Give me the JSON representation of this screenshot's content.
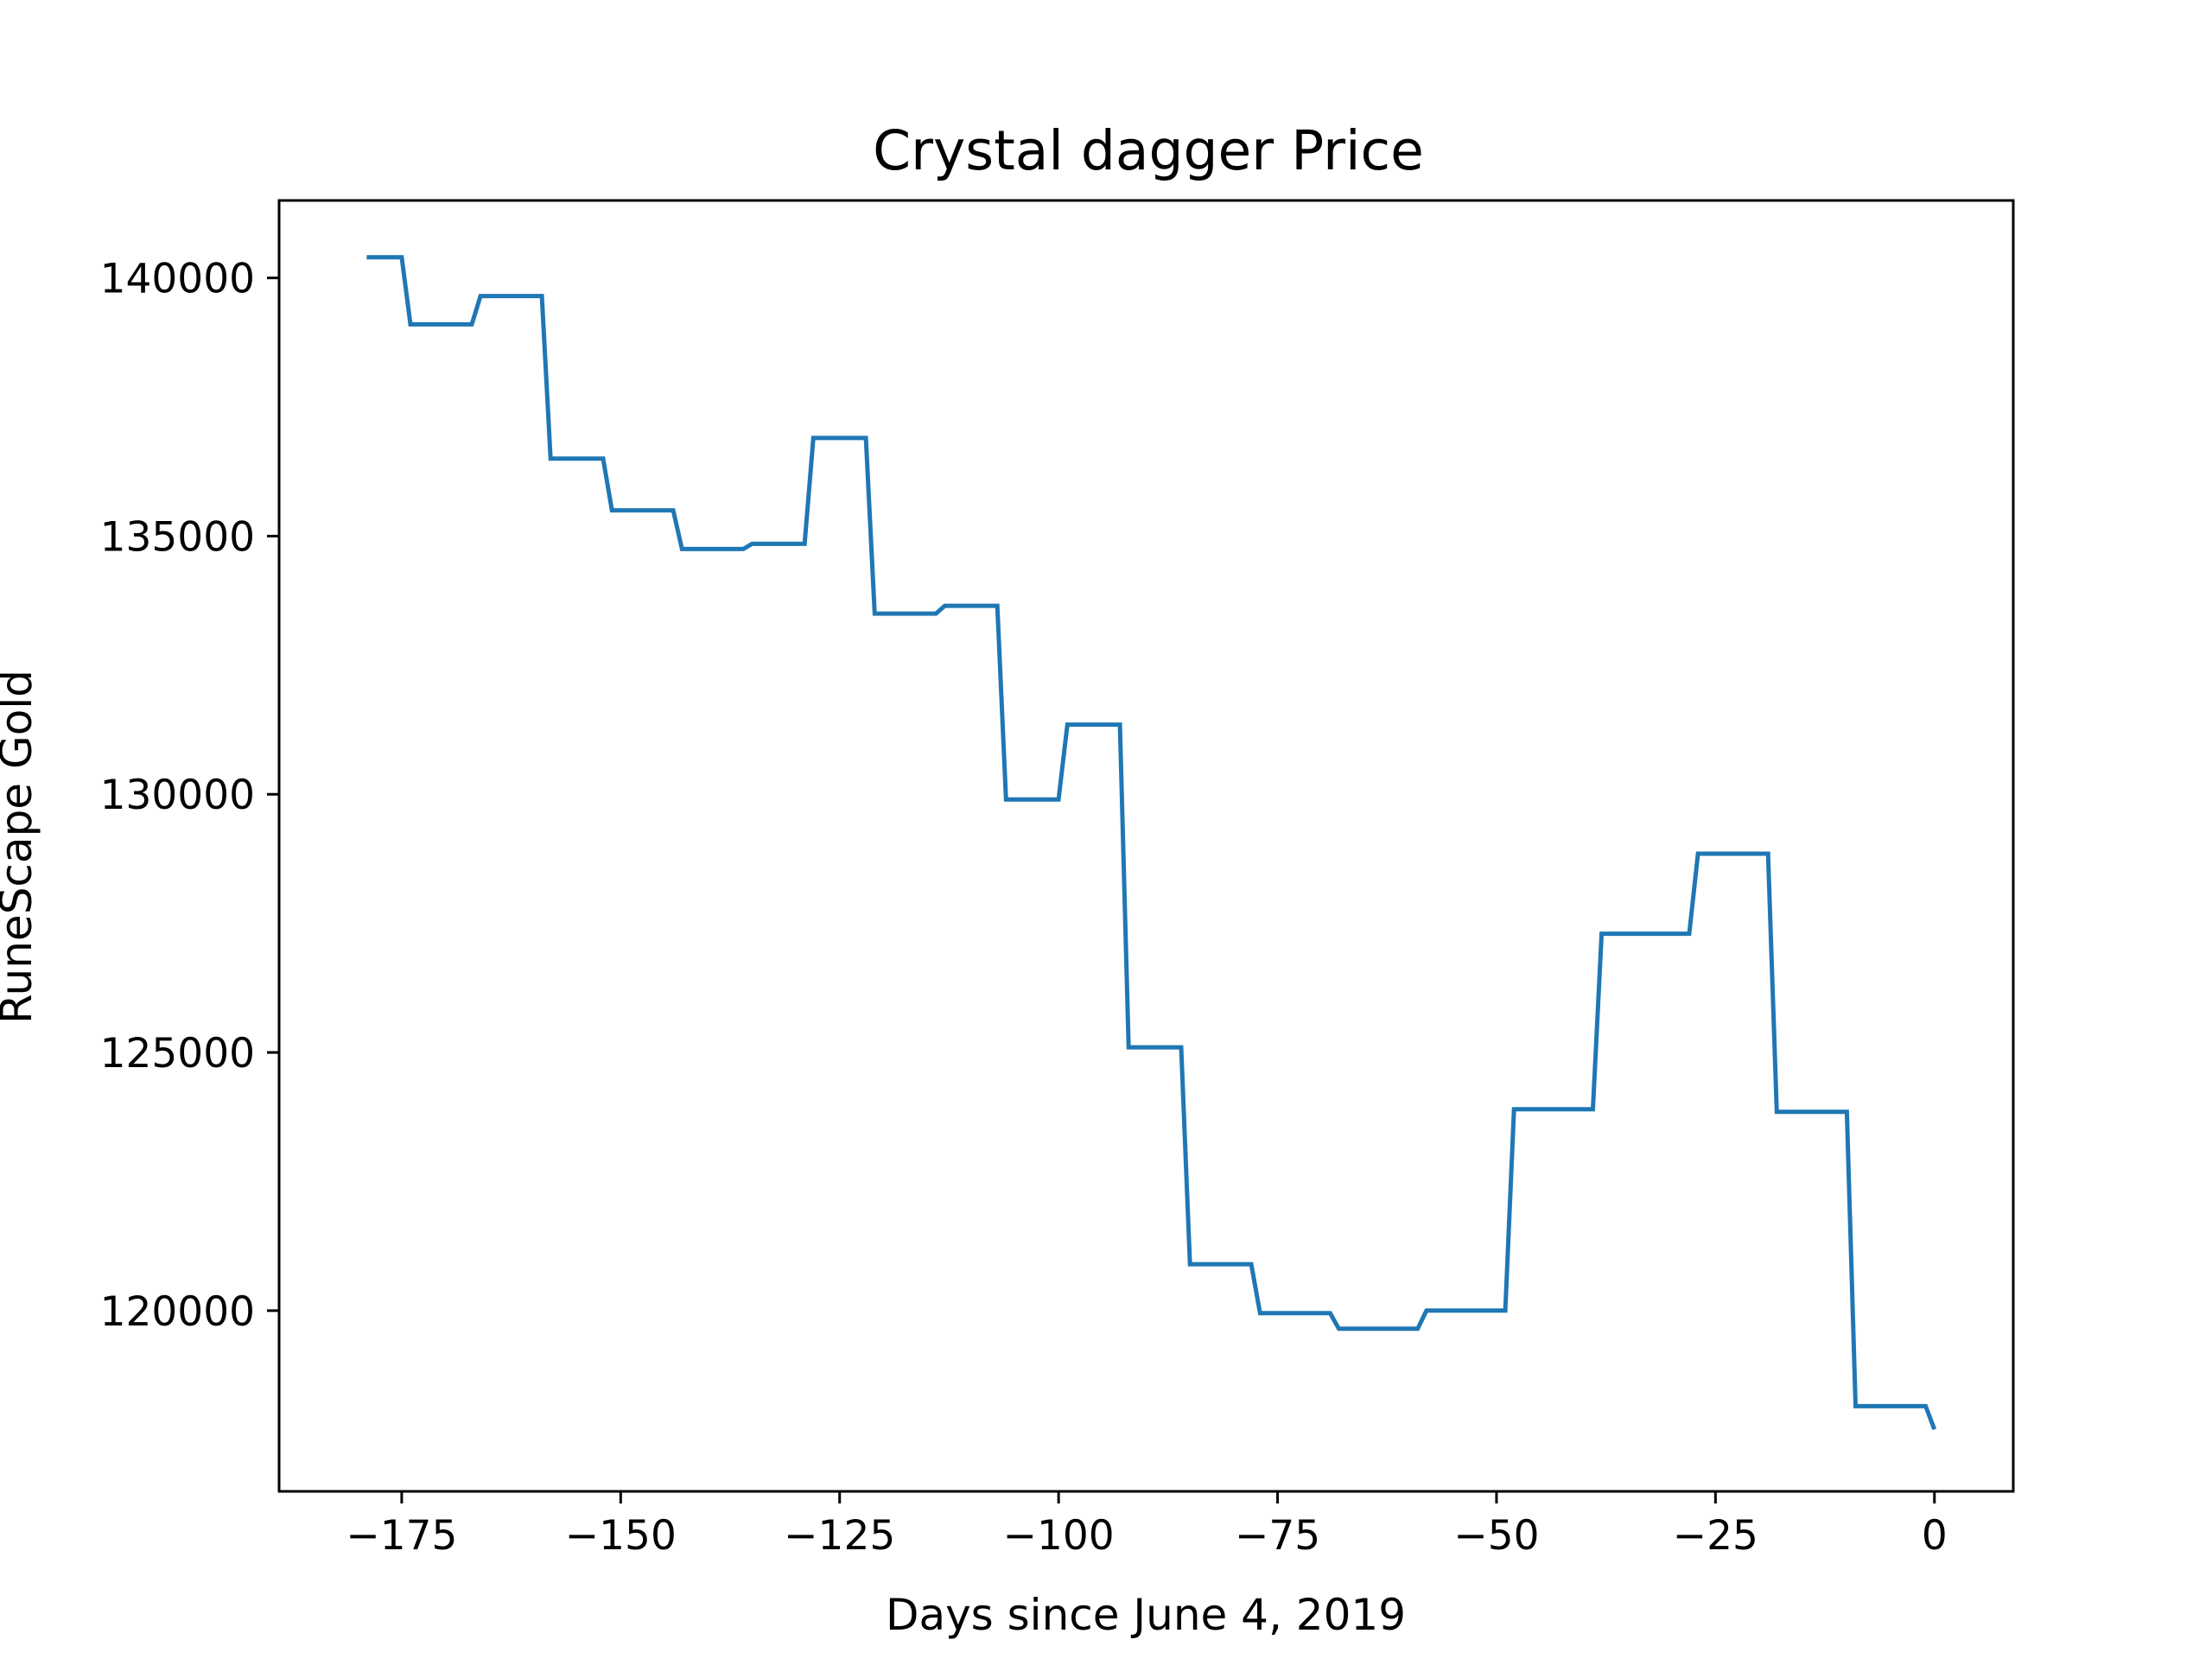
{
  "chart_data": {
    "type": "line",
    "title": "Crystal dagger Price",
    "xlabel": "Days since June 4, 2019",
    "ylabel": "RuneScape Gold",
    "xlim": [
      -189,
      9
    ],
    "ylim": [
      116500,
      141500
    ],
    "xticks": [
      -175,
      -150,
      -125,
      -100,
      -75,
      -50,
      -25,
      0
    ],
    "xtick_labels": [
      "−175",
      "−150",
      "−125",
      "−100",
      "−75",
      "−50",
      "−25",
      "0"
    ],
    "yticks": [
      120000,
      125000,
      130000,
      135000,
      140000
    ],
    "ytick_labels": [
      "120000",
      "125000",
      "130000",
      "135000",
      "140000"
    ],
    "grid": false,
    "line_color": "#1f77b4",
    "series": [
      {
        "x": [
          -179,
          -175,
          -174,
          -167,
          -166,
          -159,
          -158,
          -152,
          -151,
          -144,
          -143,
          -136,
          -135,
          -129,
          -128,
          -122,
          -121,
          -114,
          -113,
          -107,
          -106,
          -100,
          -99,
          -93,
          -92,
          -86,
          -85,
          -78,
          -77,
          -69,
          -68,
          -59,
          -58,
          -49,
          -48,
          -39,
          -38,
          -28,
          -27,
          -19,
          -18,
          -10,
          -9,
          -1,
          0
        ],
        "y": [
          140400,
          140400,
          139100,
          139100,
          139650,
          139650,
          136500,
          136500,
          135500,
          135500,
          134750,
          134750,
          134850,
          134850,
          136900,
          136900,
          133500,
          133500,
          133650,
          133650,
          129900,
          129900,
          131350,
          131350,
          125100,
          125100,
          120900,
          120900,
          119950,
          119950,
          119650,
          119650,
          120000,
          120000,
          123900,
          123900,
          127300,
          127300,
          128850,
          128850,
          123850,
          123850,
          118150,
          118150,
          117700
        ]
      }
    ]
  }
}
